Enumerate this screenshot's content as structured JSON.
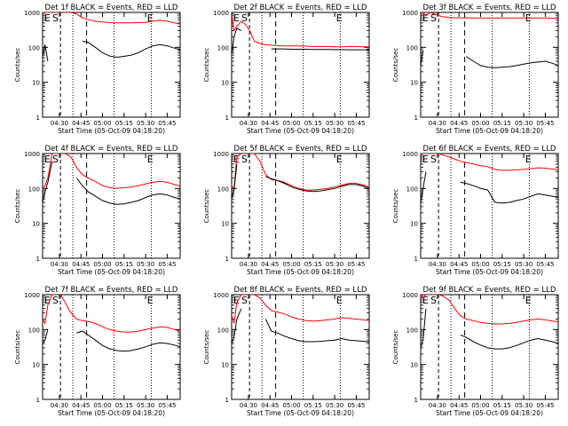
{
  "figure": {
    "xlabel": "Start Time (05-Oct-09 04:18:20)",
    "ylabel": "Counts/sec",
    "x_tick_labels": [
      "04:30",
      "04:45",
      "05:00",
      "05:15",
      "05:30",
      "05:45"
    ],
    "y_tick_labels": [
      "1",
      "10",
      "100",
      "1000"
    ],
    "colors": {
      "events": "#000000",
      "lld": "#ff0000",
      "axes": "#000000",
      "background": "#ffffff"
    }
  },
  "chart_data": [
    {
      "type": "line",
      "title": "Det 1f BLACK = Events, RED = LLD",
      "markers": [
        "E",
        "S",
        "E"
      ],
      "x": [
        "04:18:20",
        "04:20",
        "04:22",
        "04:25",
        "04:28",
        "04:31",
        "04:34",
        "04:38",
        "04:42",
        "04:46",
        "04:50",
        "04:55",
        "05:00",
        "05:05",
        "05:10",
        "05:15",
        "05:20",
        "05:25",
        "05:30",
        "05:35",
        "05:40",
        "05:45",
        "05:50",
        "05:54"
      ],
      "xlim": [
        "04:18:20",
        "05:54"
      ],
      "ylim": [
        1,
        1000
      ],
      "yscale": "log",
      "grid": false,
      "series": [
        {
          "name": "RED = LLD",
          "values": [
            1000,
            1000,
            1000,
            1000,
            1000,
            1000,
            1000,
            1000,
            900,
            700,
            620,
            560,
            530,
            510,
            500,
            500,
            500,
            510,
            520,
            560,
            600,
            560,
            500,
            460
          ]
        },
        {
          "name": "BLACK = Events",
          "values": [
            50,
            120,
            40,
            null,
            null,
            null,
            null,
            null,
            null,
            150,
            140,
            100,
            70,
            56,
            52,
            55,
            60,
            70,
            90,
            110,
            120,
            110,
            95,
            85
          ]
        }
      ]
    },
    {
      "type": "line",
      "title": "Det 2f BLACK = Events, RED = LLD",
      "markers": [
        "E",
        "S",
        "E"
      ],
      "x": [
        "04:18:20",
        "04:20",
        "04:22",
        "04:25",
        "04:28",
        "04:31",
        "04:34",
        "04:38",
        "04:42",
        "04:46",
        "04:50",
        "04:55",
        "05:00",
        "05:05",
        "05:10",
        "05:15",
        "05:20",
        "05:25",
        "05:30",
        "05:35",
        "05:40",
        "05:45",
        "05:50",
        "05:54"
      ],
      "xlim": [
        "04:18:20",
        "05:54"
      ],
      "ylim": [
        1,
        1000
      ],
      "yscale": "log",
      "grid": false,
      "series": [
        {
          "name": "RED = LLD",
          "values": [
            800,
            300,
            400,
            550,
            450,
            300,
            150,
            130,
            120,
            115,
            112,
            110,
            110,
            110,
            108,
            105,
            105,
            105,
            104,
            104,
            105,
            105,
            104,
            104
          ]
        },
        {
          "name": "BLACK = Events",
          "values": [
            60,
            200,
            350,
            300,
            null,
            null,
            null,
            null,
            null,
            90,
            90,
            90,
            88,
            88,
            88,
            87,
            87,
            87,
            86,
            86,
            85,
            85,
            85,
            85
          ]
        }
      ]
    },
    {
      "type": "line",
      "title": "Det 3f BLACK = Events, RED = LLD",
      "markers": [
        "E",
        "S",
        "E"
      ],
      "x": [
        "04:18:20",
        "04:20",
        "04:22",
        "04:25",
        "04:28",
        "04:31",
        "04:34",
        "04:38",
        "04:42",
        "04:46",
        "04:50",
        "04:55",
        "05:00",
        "05:05",
        "05:10",
        "05:15",
        "05:20",
        "05:25",
        "05:30",
        "05:35",
        "05:40",
        "05:45",
        "05:50",
        "05:54"
      ],
      "xlim": [
        "04:18:20",
        "05:54"
      ],
      "ylim": [
        1,
        1000
      ],
      "yscale": "log",
      "grid": false,
      "series": [
        {
          "name": "RED = LLD",
          "values": [
            1000,
            1000,
            800,
            1000,
            900,
            800,
            750,
            720,
            700,
            700,
            700,
            690,
            690,
            690,
            690,
            690,
            690,
            690,
            690,
            690,
            690,
            690,
            680,
            680
          ]
        },
        {
          "name": "BLACK = Events",
          "values": [
            30,
            80,
            null,
            null,
            null,
            null,
            null,
            null,
            null,
            null,
            55,
            40,
            30,
            27,
            26,
            27,
            28,
            30,
            33,
            36,
            38,
            40,
            35,
            30
          ]
        }
      ]
    },
    {
      "type": "line",
      "title": "Det 4f BLACK = Events, RED = LLD",
      "markers": [
        "E",
        "S",
        "E"
      ],
      "x": [
        "04:18:20",
        "04:20",
        "04:22",
        "04:25",
        "04:28",
        "04:31",
        "04:34",
        "04:38",
        "04:42",
        "04:46",
        "04:50",
        "04:55",
        "05:00",
        "05:05",
        "05:10",
        "05:15",
        "05:20",
        "05:25",
        "05:30",
        "05:35",
        "05:40",
        "05:45",
        "05:50",
        "05:54"
      ],
      "xlim": [
        "04:18:20",
        "05:54"
      ],
      "ylim": [
        1,
        1000
      ],
      "yscale": "log",
      "grid": false,
      "series": [
        {
          "name": "RED = LLD",
          "values": [
            100,
            120,
            200,
            1000,
            1000,
            1000,
            1000,
            800,
            400,
            250,
            200,
            160,
            120,
            105,
            100,
            105,
            110,
            120,
            135,
            150,
            160,
            150,
            130,
            115
          ]
        },
        {
          "name": "BLACK = Events",
          "values": [
            40,
            80,
            150,
            600,
            null,
            null,
            null,
            null,
            200,
            120,
            80,
            60,
            45,
            38,
            35,
            36,
            40,
            45,
            55,
            65,
            70,
            65,
            55,
            50
          ]
        }
      ]
    },
    {
      "type": "line",
      "title": "Det 5f BLACK = Events, RED = LLD",
      "markers": [
        "E",
        "S",
        "E"
      ],
      "x": [
        "04:18:20",
        "04:20",
        "04:22",
        "04:25",
        "04:28",
        "04:31",
        "04:34",
        "04:38",
        "04:42",
        "04:46",
        "04:50",
        "04:55",
        "05:00",
        "05:05",
        "05:10",
        "05:15",
        "05:20",
        "05:25",
        "05:30",
        "05:35",
        "05:40",
        "05:45",
        "05:50",
        "05:54"
      ],
      "xlim": [
        "04:18:20",
        "05:54"
      ],
      "ylim": [
        1,
        1000
      ],
      "yscale": "log",
      "grid": false,
      "series": [
        {
          "name": "RED = LLD",
          "values": [
            120,
            100,
            800,
            1000,
            1000,
            1000,
            1000,
            600,
            250,
            180,
            170,
            150,
            120,
            100,
            90,
            90,
            95,
            100,
            110,
            125,
            140,
            140,
            125,
            110
          ]
        },
        {
          "name": "BLACK = Events",
          "values": [
            50,
            90,
            500,
            null,
            null,
            null,
            null,
            null,
            220,
            190,
            170,
            140,
            110,
            95,
            85,
            82,
            85,
            92,
            100,
            115,
            130,
            130,
            115,
            100
          ]
        }
      ]
    },
    {
      "type": "line",
      "title": "Det 6f BLACK = Events, RED = LLD",
      "markers": [
        "E",
        "S",
        "E"
      ],
      "x": [
        "04:18:20",
        "04:20",
        "04:22",
        "04:25",
        "04:28",
        "04:31",
        "04:34",
        "04:38",
        "04:42",
        "04:46",
        "04:50",
        "04:55",
        "05:00",
        "05:05",
        "05:10",
        "05:15",
        "05:20",
        "05:25",
        "05:30",
        "05:35",
        "05:40",
        "05:45",
        "05:50",
        "05:54"
      ],
      "xlim": [
        "04:18:20",
        "05:54"
      ],
      "ylim": [
        1,
        1000
      ],
      "yscale": "log",
      "grid": false,
      "series": [
        {
          "name": "RED = LLD",
          "values": [
            1000,
            1000,
            1000,
            1000,
            1000,
            1000,
            900,
            800,
            700,
            600,
            550,
            500,
            450,
            420,
            350,
            330,
            330,
            340,
            350,
            370,
            390,
            380,
            360,
            340
          ]
        },
        {
          "name": "BLACK = Events",
          "values": [
            40,
            100,
            300,
            null,
            null,
            null,
            null,
            null,
            null,
            150,
            140,
            120,
            100,
            90,
            40,
            38,
            40,
            45,
            50,
            60,
            70,
            65,
            60,
            55
          ]
        }
      ]
    },
    {
      "type": "line",
      "title": "Det 7f BLACK = Events, RED = LLD",
      "markers": [
        "E",
        "S",
        "E"
      ],
      "x": [
        "04:18:20",
        "04:20",
        "04:22",
        "04:25",
        "04:28",
        "04:31",
        "04:34",
        "04:38",
        "04:42",
        "04:46",
        "04:50",
        "04:55",
        "05:00",
        "05:05",
        "05:10",
        "05:15",
        "05:20",
        "05:25",
        "05:30",
        "05:35",
        "05:40",
        "05:45",
        "05:50",
        "05:54"
      ],
      "xlim": [
        "04:18:20",
        "05:54"
      ],
      "ylim": [
        1,
        1000
      ],
      "yscale": "log",
      "grid": false,
      "series": [
        {
          "name": "RED = LLD",
          "values": [
            200,
            150,
            500,
            1000,
            1000,
            1000,
            600,
            300,
            200,
            180,
            170,
            150,
            120,
            100,
            90,
            85,
            85,
            90,
            100,
            110,
            120,
            115,
            100,
            90
          ]
        },
        {
          "name": "BLACK = Events",
          "values": [
            40,
            50,
            100,
            null,
            null,
            null,
            null,
            null,
            80,
            90,
            70,
            50,
            35,
            28,
            25,
            24,
            25,
            28,
            32,
            38,
            42,
            40,
            36,
            32
          ]
        }
      ]
    },
    {
      "type": "line",
      "title": "Det 8f BLACK = Events, RED = LLD",
      "markers": [
        "E",
        "S",
        "E"
      ],
      "x": [
        "04:18:20",
        "04:20",
        "04:22",
        "04:25",
        "04:28",
        "04:31",
        "04:34",
        "04:38",
        "04:42",
        "04:46",
        "04:50",
        "04:55",
        "05:00",
        "05:05",
        "05:10",
        "05:15",
        "05:20",
        "05:25",
        "05:30",
        "05:35",
        "05:40",
        "05:45",
        "05:50",
        "05:54"
      ],
      "xlim": [
        "04:18:20",
        "05:54"
      ],
      "ylim": [
        1,
        1000
      ],
      "yscale": "log",
      "grid": false,
      "series": [
        {
          "name": "RED = LLD",
          "values": [
            250,
            150,
            600,
            1000,
            1000,
            1000,
            1000,
            800,
            500,
            350,
            320,
            280,
            230,
            200,
            180,
            175,
            180,
            190,
            200,
            220,
            210,
            200,
            190,
            180
          ]
        },
        {
          "name": "BLACK = Events",
          "values": [
            40,
            60,
            200,
            400,
            null,
            null,
            null,
            null,
            200,
            90,
            80,
            65,
            55,
            48,
            45,
            45,
            46,
            48,
            50,
            55,
            50,
            48,
            46,
            44
          ]
        }
      ]
    },
    {
      "type": "line",
      "title": "Det 9f BLACK = Events, RED = LLD",
      "markers": [
        "E",
        "S",
        "E"
      ],
      "x": [
        "04:18:20",
        "04:20",
        "04:22",
        "04:25",
        "04:28",
        "04:31",
        "04:34",
        "04:38",
        "04:42",
        "04:46",
        "04:50",
        "04:55",
        "05:00",
        "05:05",
        "05:10",
        "05:15",
        "05:20",
        "05:25",
        "05:30",
        "05:35",
        "05:40",
        "05:45",
        "05:50",
        "05:54"
      ],
      "xlim": [
        "04:18:20",
        "05:54"
      ],
      "ylim": [
        1,
        1000
      ],
      "yscale": "log",
      "grid": false,
      "series": [
        {
          "name": "RED = LLD",
          "values": [
            1000,
            800,
            1000,
            1000,
            1000,
            1000,
            900,
            700,
            400,
            250,
            200,
            180,
            160,
            150,
            145,
            145,
            150,
            160,
            175,
            190,
            200,
            190,
            175,
            165
          ]
        },
        {
          "name": "BLACK = Events",
          "values": [
            30,
            50,
            400,
            null,
            null,
            null,
            null,
            null,
            null,
            70,
            60,
            45,
            36,
            30,
            28,
            28,
            30,
            35,
            42,
            50,
            55,
            50,
            45,
            40
          ]
        }
      ]
    }
  ]
}
